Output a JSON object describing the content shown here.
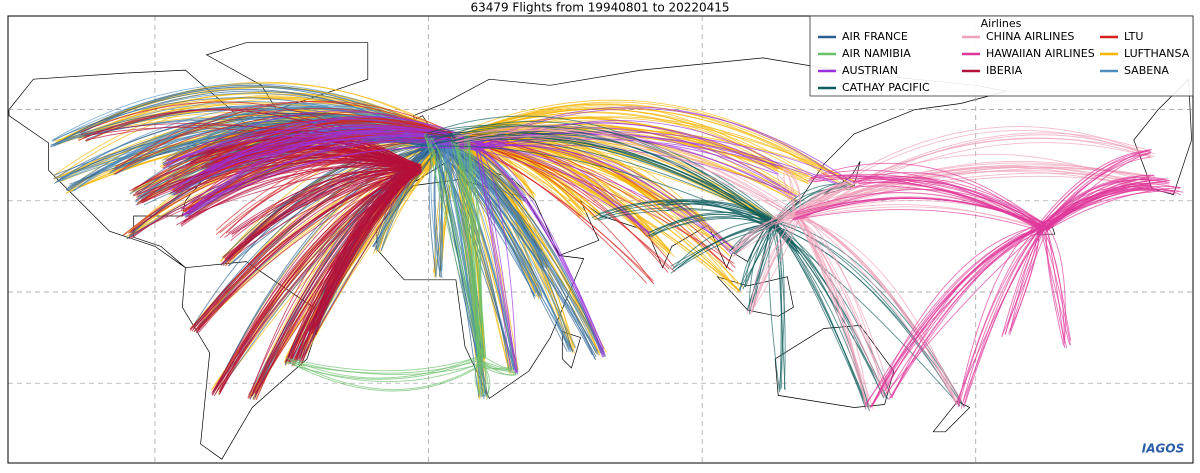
{
  "title": "63479 Flights from 19940801 to 20220415",
  "legend": {
    "title": "Airlines",
    "items": [
      {
        "name": "AIR FRANCE",
        "color": "#2b5f91"
      },
      {
        "name": "AIR NAMIBIA",
        "color": "#6abf69"
      },
      {
        "name": "AUSTRIAN",
        "color": "#9b30e0"
      },
      {
        "name": "CATHAY PACIFIC",
        "color": "#0f5e5e"
      },
      {
        "name": "CHINA AIRLINES",
        "color": "#f0a0b8"
      },
      {
        "name": "HAWAIIAN AIRLINES",
        "color": "#e0359a"
      },
      {
        "name": "IBERIA",
        "color": "#b5103a"
      },
      {
        "name": "LTU",
        "color": "#d62020"
      },
      {
        "name": "LUFTHANSA",
        "color": "#f7b500"
      },
      {
        "name": "SABENA",
        "color": "#4f8fc0"
      }
    ]
  },
  "logo": "IAGOS"
}
